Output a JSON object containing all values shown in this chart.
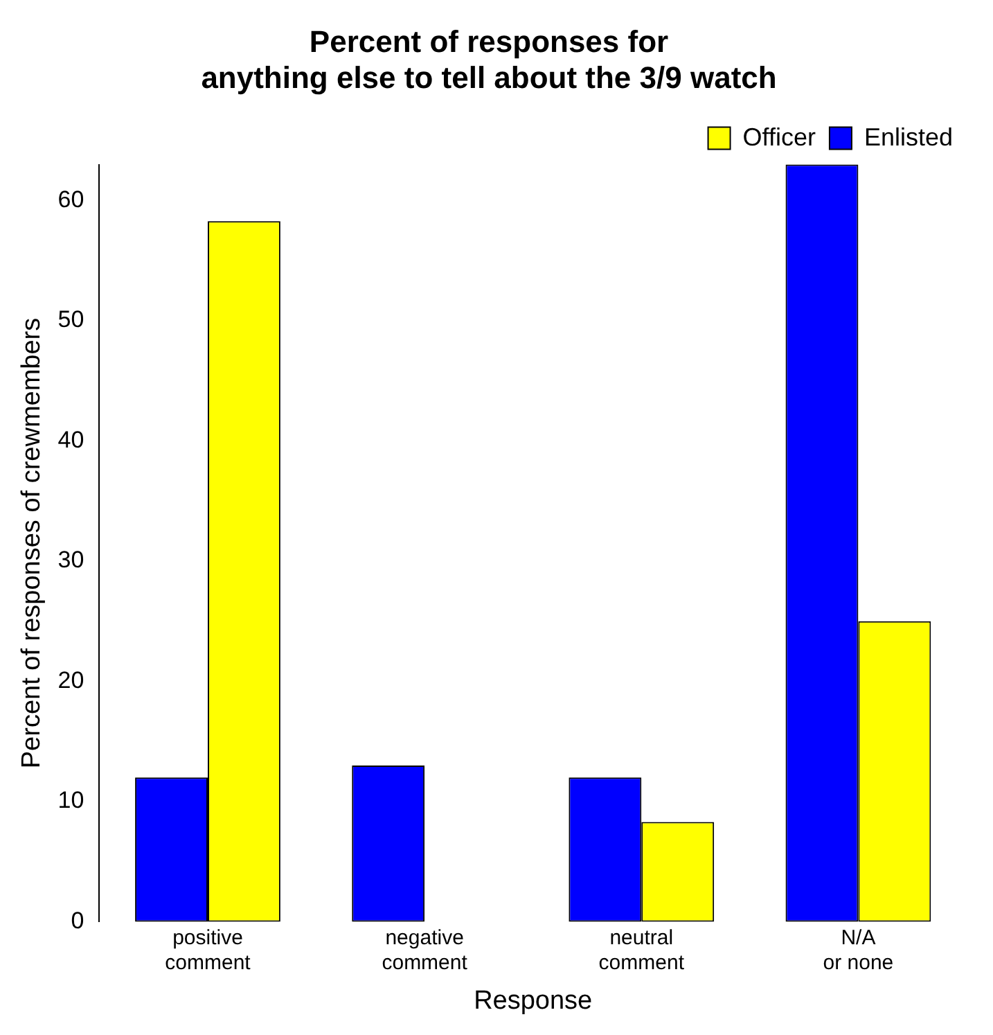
{
  "chart_data": {
    "type": "bar",
    "title": "Percent of responses for\nanything else to tell about the 3/9 watch",
    "xlabel": "Response",
    "ylabel": "Percent of responses of crewmembers",
    "categories": [
      "positive\ncomment",
      "negative\ncomment",
      "neutral\ncomment",
      "N/A\nor none"
    ],
    "series": [
      {
        "name": "Enlisted",
        "color": "#0000ff",
        "values": [
          12,
          13,
          12,
          63
        ]
      },
      {
        "name": "Officer",
        "color": "#ffff00",
        "values": [
          58.3,
          0,
          8.3,
          25
        ]
      }
    ],
    "ylim": [
      0,
      63
    ],
    "yticks": [
      0,
      10,
      20,
      30,
      40,
      50,
      60
    ],
    "grid": false,
    "legend": "top right"
  }
}
